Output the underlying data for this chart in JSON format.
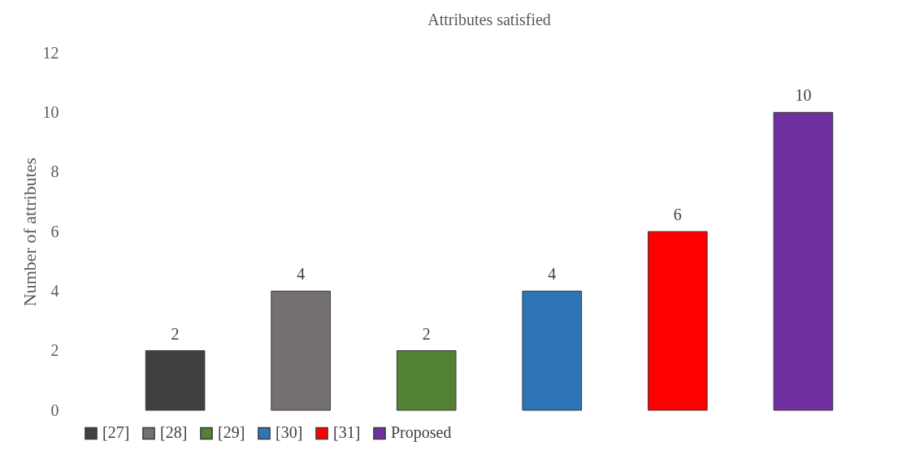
{
  "chart_data": {
    "type": "bar",
    "title": "Attributes satisfied",
    "ylabel": "Number of attributes",
    "categories": [
      null,
      null,
      null,
      null,
      null,
      null
    ],
    "stacked": true,
    "series": [
      {
        "name": "[27]",
        "color": "#404040",
        "values": [
          2,
          null,
          null,
          null,
          null,
          null
        ]
      },
      {
        "name": "[28]",
        "color": "#767171",
        "values": [
          null,
          4,
          null,
          null,
          null,
          null
        ]
      },
      {
        "name": "[29]",
        "color": "#548235",
        "values": [
          null,
          null,
          2,
          null,
          null,
          null
        ]
      },
      {
        "name": "[30]",
        "color": "#2e75b6",
        "values": [
          null,
          null,
          null,
          4,
          null,
          null
        ]
      },
      {
        "name": "[31]",
        "color": "#ff0000",
        "values": [
          null,
          null,
          null,
          null,
          6,
          null
        ]
      },
      {
        "name": "Proposed",
        "color": "#7030a0",
        "values": [
          null,
          null,
          null,
          null,
          null,
          10
        ]
      }
    ],
    "ylim": [
      0,
      12
    ],
    "yticks": [
      0,
      2,
      4,
      6,
      8,
      10,
      12
    ],
    "grid": false,
    "legend": "bottom",
    "data_labels": true,
    "tick_labels": "y"
  }
}
